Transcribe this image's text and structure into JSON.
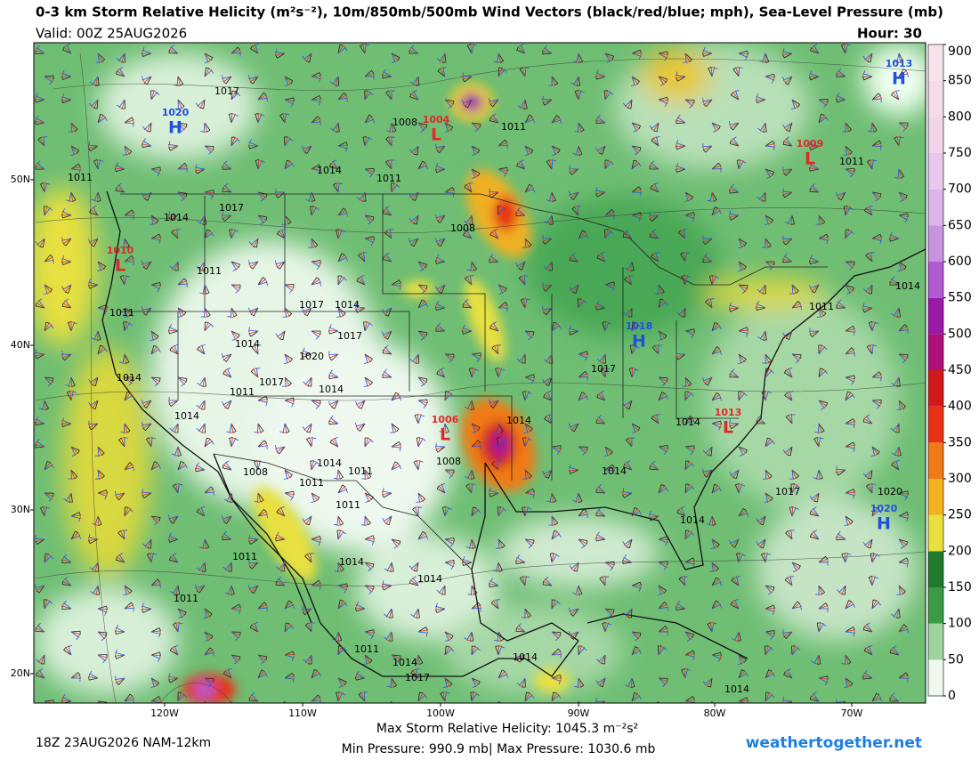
{
  "header": {
    "title": "0-3 km Storm Relative Helicity (m²s⁻²), 10m/850mb/500mb Wind Vectors (black/red/blue; mph), Sea-Level Pressure (mb)",
    "valid": "Valid: 00Z 25AUG2026",
    "hour": "Hour: 30"
  },
  "latitude_labels": [
    "50N",
    "40N",
    "30N",
    "20N"
  ],
  "longitude_labels": [
    "120W",
    "110W",
    "100W",
    "90W",
    "80W",
    "70W"
  ],
  "colorbar": {
    "range": [
      0,
      900
    ],
    "ticks": [
      0,
      50,
      100,
      150,
      200,
      250,
      300,
      350,
      400,
      450,
      500,
      550,
      600,
      650,
      700,
      750,
      800,
      850,
      900
    ],
    "colors": [
      "#eef8ee",
      "#9fd49f",
      "#3c9a44",
      "#1f7a2c",
      "#e8e040",
      "#f2b21c",
      "#f07a18",
      "#e83218",
      "#d01a1a",
      "#b0107a",
      "#9a1aa8",
      "#b05cd0",
      "#c894e0",
      "#dcb4e8",
      "#e8c8ec",
      "#f0d4e8",
      "#f4dce8",
      "#f8e4ec"
    ]
  },
  "pressure_centers": [
    {
      "letter": "H",
      "value": "1020"
    },
    {
      "letter": "L",
      "value": "1004"
    },
    {
      "letter": "L",
      "value": "1009"
    },
    {
      "letter": "H",
      "value": "1013"
    },
    {
      "letter": "L",
      "value": "1010"
    },
    {
      "letter": "H",
      "value": "1018"
    },
    {
      "letter": "L",
      "value": "1006"
    },
    {
      "letter": "L",
      "value": "1013"
    },
    {
      "letter": "H",
      "value": "1020"
    }
  ],
  "isobar_labels": [
    "1017",
    "1008",
    "1011",
    "1014",
    "1011",
    "1014",
    "1017",
    "1008",
    "1011",
    "1011",
    "1017",
    "1014",
    "1017",
    "1014",
    "1020",
    "1017",
    "1014",
    "1011",
    "1014",
    "1014",
    "1017",
    "1014",
    "1008",
    "1014",
    "1011",
    "1008",
    "1011",
    "1011",
    "1014",
    "1017",
    "1020",
    "1014",
    "1014",
    "1014",
    "1011",
    "1011",
    "1014",
    "1014",
    "1011",
    "1017",
    "1014",
    "1011",
    "1011",
    "1011",
    "1014",
    "1014"
  ],
  "footer": {
    "run": "18Z 23AUG2026 NAM-12km",
    "max_helicity": "Max Storm Relative Helicity: 1045.3 m⁻²s²",
    "pressure_range": "Min Pressure: 990.9 mb| Max Pressure: 1030.6 mb",
    "site": "weathertogether.net"
  }
}
